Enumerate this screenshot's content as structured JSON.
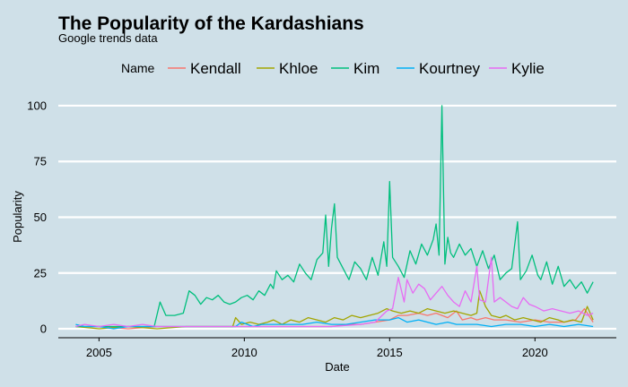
{
  "chart_data": {
    "type": "line",
    "title": "The Popularity of the Kardashians",
    "subtitle": "Google trends data",
    "xlabel": "Date",
    "ylabel": "Popularity",
    "legend_title": "Name",
    "legend_position": "top",
    "grid": "horizontal-major-only",
    "xlim": [
      2003.6,
      2022.8
    ],
    "ylim": [
      -4,
      106
    ],
    "x_ticks": [
      2005,
      2010,
      2015,
      2020
    ],
    "y_ticks": [
      0,
      25,
      50,
      75,
      100
    ],
    "x_tick_labels": [
      "2005",
      "2010",
      "2015",
      "2020"
    ],
    "y_tick_labels": [
      "0",
      "25",
      "50",
      "75",
      "100"
    ],
    "series": [
      {
        "name": "Kendall",
        "color": "#f8766d",
        "points": [
          [
            2004.2,
            1
          ],
          [
            2005,
            1
          ],
          [
            2006,
            0
          ],
          [
            2007,
            1
          ],
          [
            2008,
            1
          ],
          [
            2009,
            1
          ],
          [
            2010,
            1
          ],
          [
            2011,
            1
          ],
          [
            2012,
            1
          ],
          [
            2013,
            1
          ],
          [
            2013.6,
            2
          ],
          [
            2014,
            2
          ],
          [
            2014.5,
            3
          ],
          [
            2015,
            4
          ],
          [
            2015.3,
            6
          ],
          [
            2015.6,
            6
          ],
          [
            2016,
            7
          ],
          [
            2016.3,
            6
          ],
          [
            2016.6,
            7
          ],
          [
            2017,
            5
          ],
          [
            2017.3,
            8
          ],
          [
            2017.5,
            4
          ],
          [
            2017.8,
            5
          ],
          [
            2018,
            4
          ],
          [
            2018.3,
            5
          ],
          [
            2018.6,
            4
          ],
          [
            2019,
            4
          ],
          [
            2019.5,
            3
          ],
          [
            2020,
            4
          ],
          [
            2020.5,
            3
          ],
          [
            2021,
            3
          ],
          [
            2021.4,
            4
          ],
          [
            2021.7,
            9
          ],
          [
            2022,
            3
          ]
        ]
      },
      {
        "name": "Khloe",
        "color": "#a3a500",
        "points": [
          [
            2004.2,
            1
          ],
          [
            2005,
            0
          ],
          [
            2006,
            1
          ],
          [
            2007,
            0
          ],
          [
            2008,
            1
          ],
          [
            2009,
            1
          ],
          [
            2009.6,
            1
          ],
          [
            2009.7,
            5
          ],
          [
            2009.9,
            2
          ],
          [
            2010.2,
            3
          ],
          [
            2010.5,
            2
          ],
          [
            2010.8,
            3
          ],
          [
            2011,
            4
          ],
          [
            2011.3,
            2
          ],
          [
            2011.6,
            4
          ],
          [
            2011.9,
            3
          ],
          [
            2012.2,
            5
          ],
          [
            2012.5,
            4
          ],
          [
            2012.8,
            3
          ],
          [
            2013.1,
            5
          ],
          [
            2013.4,
            4
          ],
          [
            2013.7,
            6
          ],
          [
            2014,
            5
          ],
          [
            2014.3,
            6
          ],
          [
            2014.6,
            7
          ],
          [
            2014.9,
            9
          ],
          [
            2015.1,
            8
          ],
          [
            2015.4,
            7
          ],
          [
            2015.7,
            8
          ],
          [
            2016,
            7
          ],
          [
            2016.3,
            9
          ],
          [
            2016.6,
            8
          ],
          [
            2016.9,
            7
          ],
          [
            2017.2,
            8
          ],
          [
            2017.5,
            7
          ],
          [
            2017.8,
            6
          ],
          [
            2018,
            7
          ],
          [
            2018.1,
            17
          ],
          [
            2018.3,
            10
          ],
          [
            2018.5,
            6
          ],
          [
            2018.8,
            5
          ],
          [
            2019,
            6
          ],
          [
            2019.3,
            4
          ],
          [
            2019.6,
            5
          ],
          [
            2019.9,
            4
          ],
          [
            2020.2,
            3
          ],
          [
            2020.5,
            5
          ],
          [
            2020.8,
            4
          ],
          [
            2021,
            3
          ],
          [
            2021.3,
            4
          ],
          [
            2021.6,
            3
          ],
          [
            2021.8,
            10
          ],
          [
            2022,
            4
          ]
        ]
      },
      {
        "name": "Kim",
        "color": "#00bf7d",
        "points": [
          [
            2004.2,
            1
          ],
          [
            2005,
            1
          ],
          [
            2006,
            1
          ],
          [
            2006.9,
            1
          ],
          [
            2007.1,
            12
          ],
          [
            2007.3,
            6
          ],
          [
            2007.6,
            6
          ],
          [
            2007.9,
            7
          ],
          [
            2008.1,
            17
          ],
          [
            2008.3,
            15
          ],
          [
            2008.5,
            11
          ],
          [
            2008.7,
            14
          ],
          [
            2008.9,
            13
          ],
          [
            2009.1,
            15
          ],
          [
            2009.3,
            12
          ],
          [
            2009.5,
            11
          ],
          [
            2009.7,
            12
          ],
          [
            2009.9,
            14
          ],
          [
            2010.1,
            15
          ],
          [
            2010.3,
            13
          ],
          [
            2010.5,
            17
          ],
          [
            2010.7,
            15
          ],
          [
            2010.9,
            20
          ],
          [
            2011.0,
            18
          ],
          [
            2011.1,
            26
          ],
          [
            2011.3,
            22
          ],
          [
            2011.5,
            24
          ],
          [
            2011.7,
            21
          ],
          [
            2011.9,
            29
          ],
          [
            2012.1,
            25
          ],
          [
            2012.3,
            22
          ],
          [
            2012.5,
            31
          ],
          [
            2012.7,
            34
          ],
          [
            2012.8,
            51
          ],
          [
            2012.9,
            28
          ],
          [
            2013.0,
            45
          ],
          [
            2013.1,
            56
          ],
          [
            2013.2,
            32
          ],
          [
            2013.4,
            27
          ],
          [
            2013.6,
            22
          ],
          [
            2013.8,
            30
          ],
          [
            2014.0,
            27
          ],
          [
            2014.2,
            22
          ],
          [
            2014.4,
            32
          ],
          [
            2014.6,
            24
          ],
          [
            2014.8,
            39
          ],
          [
            2014.9,
            28
          ],
          [
            2015.0,
            66
          ],
          [
            2015.1,
            32
          ],
          [
            2015.3,
            28
          ],
          [
            2015.5,
            23
          ],
          [
            2015.7,
            35
          ],
          [
            2015.9,
            29
          ],
          [
            2016.1,
            38
          ],
          [
            2016.3,
            33
          ],
          [
            2016.5,
            40
          ],
          [
            2016.6,
            47
          ],
          [
            2016.7,
            33
          ],
          [
            2016.8,
            100
          ],
          [
            2016.9,
            29
          ],
          [
            2017.0,
            41
          ],
          [
            2017.1,
            34
          ],
          [
            2017.2,
            32
          ],
          [
            2017.4,
            38
          ],
          [
            2017.6,
            33
          ],
          [
            2017.8,
            36
          ],
          [
            2018.0,
            28
          ],
          [
            2018.2,
            35
          ],
          [
            2018.4,
            27
          ],
          [
            2018.6,
            33
          ],
          [
            2018.8,
            22
          ],
          [
            2019.0,
            25
          ],
          [
            2019.2,
            27
          ],
          [
            2019.4,
            48
          ],
          [
            2019.5,
            22
          ],
          [
            2019.7,
            26
          ],
          [
            2019.9,
            33
          ],
          [
            2020.1,
            24
          ],
          [
            2020.2,
            22
          ],
          [
            2020.4,
            30
          ],
          [
            2020.6,
            20
          ],
          [
            2020.8,
            28
          ],
          [
            2021.0,
            19
          ],
          [
            2021.2,
            22
          ],
          [
            2021.4,
            18
          ],
          [
            2021.6,
            21
          ],
          [
            2021.8,
            16
          ],
          [
            2022.0,
            21
          ]
        ]
      },
      {
        "name": "Kourtney",
        "color": "#00b0f6",
        "points": [
          [
            2004.2,
            2
          ],
          [
            2004.5,
            1
          ],
          [
            2005,
            1
          ],
          [
            2005.5,
            0
          ],
          [
            2006,
            1
          ],
          [
            2007,
            1
          ],
          [
            2008,
            1
          ],
          [
            2009,
            1
          ],
          [
            2009.7,
            1
          ],
          [
            2009.9,
            3
          ],
          [
            2010.3,
            1
          ],
          [
            2010.6,
            2
          ],
          [
            2011,
            2
          ],
          [
            2011.5,
            2
          ],
          [
            2012,
            2
          ],
          [
            2012.5,
            3
          ],
          [
            2013,
            2
          ],
          [
            2013.5,
            2
          ],
          [
            2014,
            3
          ],
          [
            2014.5,
            4
          ],
          [
            2015,
            4
          ],
          [
            2015.3,
            5
          ],
          [
            2015.6,
            3
          ],
          [
            2016,
            4
          ],
          [
            2016.3,
            3
          ],
          [
            2016.6,
            2
          ],
          [
            2017,
            3
          ],
          [
            2017.3,
            2
          ],
          [
            2017.6,
            2
          ],
          [
            2018,
            2
          ],
          [
            2018.5,
            1
          ],
          [
            2019,
            2
          ],
          [
            2019.5,
            2
          ],
          [
            2020,
            1
          ],
          [
            2020.5,
            2
          ],
          [
            2021,
            1
          ],
          [
            2021.5,
            2
          ],
          [
            2022,
            1
          ]
        ]
      },
      {
        "name": "Kylie",
        "color": "#e76bf3",
        "points": [
          [
            2004.2,
            1
          ],
          [
            2004.5,
            2
          ],
          [
            2005,
            1
          ],
          [
            2005.5,
            2
          ],
          [
            2006,
            1
          ],
          [
            2006.5,
            2
          ],
          [
            2007,
            1
          ],
          [
            2007.5,
            1
          ],
          [
            2008,
            1
          ],
          [
            2009,
            1
          ],
          [
            2010,
            1
          ],
          [
            2011,
            1
          ],
          [
            2012,
            1
          ],
          [
            2013,
            1
          ],
          [
            2014,
            2
          ],
          [
            2014.5,
            3
          ],
          [
            2014.9,
            8
          ],
          [
            2015.1,
            9
          ],
          [
            2015.3,
            23
          ],
          [
            2015.5,
            12
          ],
          [
            2015.6,
            22
          ],
          [
            2015.8,
            16
          ],
          [
            2016.0,
            20
          ],
          [
            2016.2,
            18
          ],
          [
            2016.4,
            13
          ],
          [
            2016.6,
            16
          ],
          [
            2016.8,
            19
          ],
          [
            2017.0,
            15
          ],
          [
            2017.2,
            12
          ],
          [
            2017.4,
            10
          ],
          [
            2017.6,
            17
          ],
          [
            2017.8,
            12
          ],
          [
            2018.0,
            28
          ],
          [
            2018.1,
            13
          ],
          [
            2018.3,
            12
          ],
          [
            2018.5,
            32
          ],
          [
            2018.6,
            12
          ],
          [
            2018.8,
            14
          ],
          [
            2019.0,
            12
          ],
          [
            2019.2,
            10
          ],
          [
            2019.4,
            9
          ],
          [
            2019.6,
            14
          ],
          [
            2019.8,
            11
          ],
          [
            2020.0,
            10
          ],
          [
            2020.3,
            8
          ],
          [
            2020.6,
            9
          ],
          [
            2020.9,
            8
          ],
          [
            2021.2,
            7
          ],
          [
            2021.5,
            8
          ],
          [
            2021.8,
            6
          ],
          [
            2022.0,
            7
          ]
        ]
      }
    ]
  }
}
